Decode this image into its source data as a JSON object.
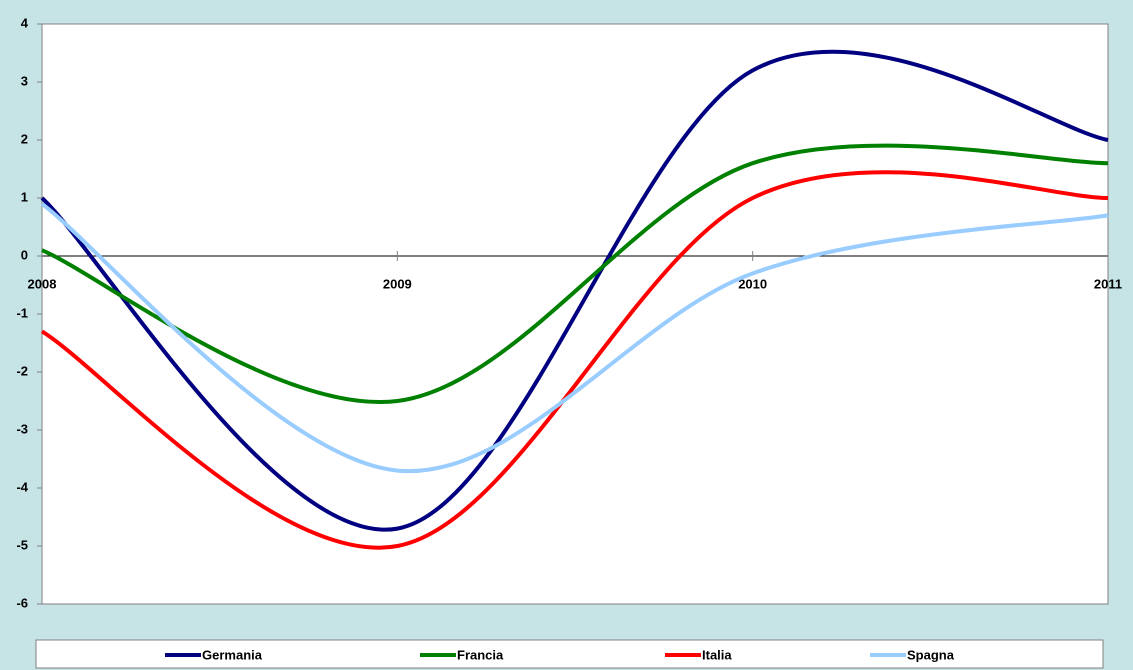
{
  "chart_data": {
    "type": "line",
    "x": [
      2008,
      2009,
      2010,
      2011
    ],
    "xlim": [
      2008,
      2011
    ],
    "xticks": [
      2008,
      2009,
      2010,
      2011
    ],
    "ylim": [
      -6,
      4
    ],
    "yticks": [
      -6,
      -5,
      -4,
      -3,
      -2,
      -1,
      0,
      1,
      2,
      3,
      4
    ],
    "grid": false,
    "smooth": true,
    "legend": "bottom",
    "series": [
      {
        "name": "Germania",
        "color": "#000080",
        "values": [
          1.0,
          -4.7,
          3.2,
          2.0
        ]
      },
      {
        "name": "Francia",
        "color": "#008000",
        "values": [
          0.1,
          -2.5,
          1.6,
          1.6
        ]
      },
      {
        "name": "Italia",
        "color": "#ff0000",
        "values": [
          -1.3,
          -5.0,
          1.0,
          1.0
        ]
      },
      {
        "name": "Spagna",
        "color": "#99ccff",
        "values": [
          0.9,
          -3.7,
          -0.3,
          0.7
        ]
      }
    ]
  }
}
